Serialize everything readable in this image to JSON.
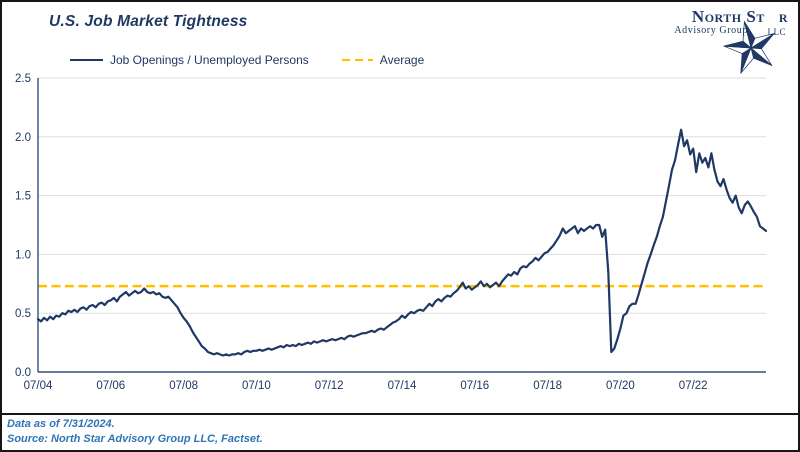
{
  "header": {
    "title": "U.S. Job Market Tightness"
  },
  "legend": {
    "series_label": "Job Openings / Unemployed Persons",
    "average_label": "Average"
  },
  "logo": {
    "name_left": "North St",
    "name_right": "r",
    "subtitle": "Advisory Group",
    "llc": "LLC"
  },
  "footer": {
    "line1": "Data as of 7/31/2024.",
    "line2": "Source: North Star Advisory Group LLC, Factset."
  },
  "colors": {
    "navy": "#1F3864",
    "gold": "#FFC000",
    "axis": "#33507F",
    "grid": "#DDDDDD",
    "source_blue": "#2E75B6"
  },
  "chart_data": {
    "type": "line",
    "title": "U.S. Job Market Tightness",
    "xlabel": "",
    "ylabel": "",
    "frequency": "monthly",
    "x_start": "2004-07",
    "x_end": "2024-07",
    "ylim": [
      0,
      2.5
    ],
    "y_ticks": [
      0,
      0.5,
      1,
      1.5,
      2,
      2.5
    ],
    "x_tick_labels": [
      "07/04",
      "07/06",
      "07/08",
      "07/10",
      "07/12",
      "07/14",
      "07/16",
      "07/18",
      "07/20",
      "07/22"
    ],
    "x_tick_month_indices": [
      0,
      24,
      48,
      72,
      96,
      120,
      144,
      168,
      192,
      216
    ],
    "grid": "horizontal",
    "legend_position": "top",
    "series": [
      {
        "name": "Job Openings / Unemployed Persons",
        "color": "#1F3864",
        "style": "solid",
        "values": [
          0.45,
          0.43,
          0.46,
          0.44,
          0.47,
          0.45,
          0.48,
          0.47,
          0.5,
          0.49,
          0.52,
          0.51,
          0.53,
          0.51,
          0.54,
          0.55,
          0.53,
          0.56,
          0.57,
          0.55,
          0.58,
          0.59,
          0.57,
          0.6,
          0.61,
          0.63,
          0.6,
          0.64,
          0.66,
          0.68,
          0.65,
          0.67,
          0.69,
          0.67,
          0.68,
          0.71,
          0.68,
          0.67,
          0.68,
          0.66,
          0.67,
          0.64,
          0.63,
          0.64,
          0.61,
          0.58,
          0.55,
          0.5,
          0.46,
          0.43,
          0.39,
          0.34,
          0.3,
          0.26,
          0.22,
          0.2,
          0.17,
          0.16,
          0.15,
          0.16,
          0.15,
          0.14,
          0.15,
          0.14,
          0.15,
          0.15,
          0.16,
          0.15,
          0.17,
          0.18,
          0.17,
          0.18,
          0.18,
          0.19,
          0.18,
          0.19,
          0.2,
          0.19,
          0.2,
          0.21,
          0.22,
          0.21,
          0.23,
          0.22,
          0.23,
          0.22,
          0.24,
          0.23,
          0.24,
          0.25,
          0.24,
          0.26,
          0.25,
          0.26,
          0.27,
          0.26,
          0.27,
          0.28,
          0.27,
          0.28,
          0.29,
          0.28,
          0.3,
          0.31,
          0.3,
          0.31,
          0.32,
          0.33,
          0.33,
          0.34,
          0.35,
          0.34,
          0.36,
          0.37,
          0.36,
          0.38,
          0.4,
          0.42,
          0.43,
          0.45,
          0.48,
          0.46,
          0.49,
          0.51,
          0.5,
          0.52,
          0.53,
          0.52,
          0.55,
          0.58,
          0.56,
          0.6,
          0.62,
          0.6,
          0.63,
          0.65,
          0.64,
          0.67,
          0.69,
          0.72,
          0.76,
          0.71,
          0.73,
          0.7,
          0.72,
          0.74,
          0.77,
          0.73,
          0.75,
          0.72,
          0.74,
          0.76,
          0.73,
          0.77,
          0.8,
          0.83,
          0.82,
          0.85,
          0.83,
          0.88,
          0.9,
          0.89,
          0.92,
          0.94,
          0.97,
          0.95,
          0.98,
          1.01,
          1.02,
          1.05,
          1.08,
          1.12,
          1.16,
          1.22,
          1.18,
          1.2,
          1.22,
          1.24,
          1.18,
          1.22,
          1.2,
          1.22,
          1.24,
          1.22,
          1.25,
          1.25,
          1.15,
          1.21,
          0.85,
          0.17,
          0.2,
          0.28,
          0.37,
          0.48,
          0.5,
          0.56,
          0.58,
          0.58,
          0.66,
          0.75,
          0.84,
          0.93,
          1.0,
          1.08,
          1.15,
          1.24,
          1.32,
          1.45,
          1.58,
          1.72,
          1.8,
          1.93,
          2.06,
          1.92,
          1.97,
          1.85,
          1.9,
          1.7,
          1.86,
          1.78,
          1.82,
          1.74,
          1.86,
          1.72,
          1.62,
          1.58,
          1.64,
          1.55,
          1.48,
          1.44,
          1.5,
          1.4,
          1.35,
          1.42,
          1.45,
          1.41,
          1.36,
          1.32,
          1.24,
          1.22,
          1.2
        ]
      },
      {
        "name": "Average",
        "color": "#FFC000",
        "style": "dashed",
        "value": 0.73
      }
    ]
  }
}
